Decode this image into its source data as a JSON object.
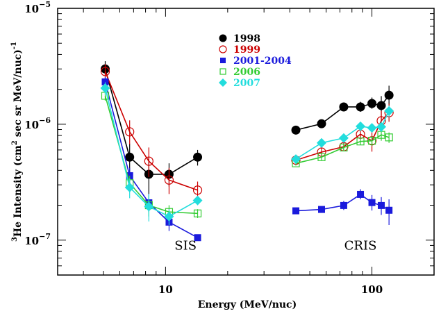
{
  "chart_data": {
    "type": "line",
    "title": "",
    "xlabel": "Energy (MeV/nuc)",
    "ylabel": "3He Intensity (cm2 sec sr MeV/nuc)-1",
    "ylabel_parts": {
      "sup_pre": "3",
      "pre": "He Intensity (cm",
      "sup_mid": "2",
      "mid": " sec sr MeV/nuc)",
      "sup_post": "-1"
    },
    "xscale": "log",
    "yscale": "log",
    "xlim": [
      3,
      200
    ],
    "ylim": [
      5e-08,
      1e-05
    ],
    "x_ticks": [
      {
        "value": 10,
        "label": "10"
      },
      {
        "value": 100,
        "label": "100"
      }
    ],
    "y_ticks": [
      {
        "value": 1e-05,
        "base": "10",
        "exp": "-5"
      },
      {
        "value": 1e-06,
        "base": "10",
        "exp": "-6"
      },
      {
        "value": 1e-07,
        "base": "10",
        "exp": "-7"
      }
    ],
    "grid": false,
    "legend_position": "top-center",
    "annotations": [
      {
        "text": "SIS",
        "x": 12.5,
        "y": 9e-08
      },
      {
        "text": "CRIS",
        "x": 88,
        "y": 9e-08
      }
    ],
    "series": [
      {
        "name": "1998",
        "color": "#000000",
        "marker": "filled-circle",
        "groups": [
          {
            "x": [
              5.1,
              6.7,
              8.3,
              10.4,
              14.3
            ],
            "y": [
              3e-06,
              5.2e-07,
              3.7e-07,
              3.7e-07,
              5.2e-07
            ],
            "err_lo": [
              2.6e-06,
              3.8e-07,
              2.5e-07,
              2.9e-07,
              4.4e-07
            ],
            "err_hi": [
              3.5e-06,
              6.8e-07,
              5.2e-07,
              4.6e-07,
              6e-07
            ]
          },
          {
            "x": [
              42.8,
              57,
              73,
              88,
              100,
              111,
              121
            ],
            "y": [
              8.9e-07,
              1.01e-06,
              1.41e-06,
              1.41e-06,
              1.51e-06,
              1.45e-06,
              1.78e-06
            ],
            "err_lo": [
              8.5e-07,
              9.7e-07,
              1.33e-06,
              1.28e-06,
              1.36e-06,
              1.1e-06,
              1.45e-06
            ],
            "err_hi": [
              9.3e-07,
              1.05e-06,
              1.5e-06,
              1.56e-06,
              1.7e-06,
              1.75e-06,
              2.15e-06
            ]
          }
        ]
      },
      {
        "name": "1999",
        "color": "#cc0000",
        "marker": "open-circle",
        "groups": [
          {
            "x": [
              5.1,
              6.7,
              8.3,
              10.4,
              14.3
            ],
            "y": [
              2.85e-06,
              8.6e-07,
              4.8e-07,
              3.3e-07,
              2.7e-07
            ],
            "err_lo": [
              2.4e-06,
              6.7e-07,
              3.5e-07,
              2.5e-07,
              2.3e-07
            ],
            "err_hi": [
              3.3e-06,
              1.08e-06,
              6.3e-07,
              4.2e-07,
              3.2e-07
            ]
          },
          {
            "x": [
              42.8,
              57,
              73,
              88,
              100,
              111,
              121
            ],
            "y": [
              4.9e-07,
              5.75e-07,
              6.4e-07,
              8.2e-07,
              7.2e-07,
              1.07e-06,
              1.26e-06
            ],
            "err_lo": [
              4.6e-07,
              5.3e-07,
              6e-07,
              7.4e-07,
              5.8e-07,
              8.6e-07,
              1.05e-06
            ],
            "err_hi": [
              5.2e-07,
              6.2e-07,
              6.9e-07,
              9.1e-07,
              8.6e-07,
              1.3e-06,
              1.5e-06
            ]
          }
        ]
      },
      {
        "name": "2001-2004",
        "color": "#1a1adc",
        "marker": "filled-square",
        "groups": [
          {
            "x": [
              5.1,
              6.7,
              8.3,
              10.4,
              14.3
            ],
            "y": [
              2.32e-06,
              3.6e-07,
              2.1e-07,
              1.43e-07,
              1.05e-07
            ],
            "err_lo": [
              2.1e-06,
              3e-07,
              1.75e-07,
              1.2e-07,
              1e-07
            ],
            "err_hi": [
              2.55e-06,
              4.2e-07,
              2.5e-07,
              1.7e-07,
              1.1e-07
            ]
          },
          {
            "x": [
              42.8,
              57,
              73,
              88,
              100,
              111,
              121
            ],
            "y": [
              1.79e-07,
              1.84e-07,
              1.99e-07,
              2.48e-07,
              2.11e-07,
              1.99e-07,
              1.81e-07
            ],
            "err_lo": [
              1.72e-07,
              1.76e-07,
              1.82e-07,
              2.25e-07,
              1.8e-07,
              1.65e-07,
              1.35e-07
            ],
            "err_hi": [
              1.86e-07,
              1.92e-07,
              2.18e-07,
              2.75e-07,
              2.45e-07,
              2.35e-07,
              2.25e-07
            ]
          }
        ]
      },
      {
        "name": "2006",
        "color": "#33cc33",
        "marker": "open-square",
        "groups": [
          {
            "x": [
              5.1,
              6.7,
              8.3,
              10.4,
              14.3
            ],
            "y": [
              1.76e-06,
              3.1e-07,
              2e-07,
              1.75e-07,
              1.7e-07
            ],
            "err_lo": [
              1.6e-06,
              2.6e-07,
              1.6e-07,
              1.5e-07,
              1.55e-07
            ],
            "err_hi": [
              1.95e-06,
              3.6e-07,
              2.4e-07,
              2e-07,
              1.85e-07
            ]
          },
          {
            "x": [
              42.8,
              57,
              73,
              88,
              100,
              111,
              121
            ],
            "y": [
              4.6e-07,
              5.2e-07,
              6.3e-07,
              7.1e-07,
              7.2e-07,
              8.1e-07,
              7.7e-07
            ],
            "err_lo": [
              4.4e-07,
              4.9e-07,
              5.9e-07,
              6.6e-07,
              6.5e-07,
              7.2e-07,
              6.9e-07
            ],
            "err_hi": [
              4.8e-07,
              5.5e-07,
              6.7e-07,
              7.6e-07,
              7.9e-07,
              9e-07,
              8.5e-07
            ]
          }
        ]
      },
      {
        "name": "2007",
        "color": "#22dddd",
        "marker": "filled-diamond",
        "groups": [
          {
            "x": [
              5.1,
              6.7,
              8.3,
              10.4,
              14.3
            ],
            "y": [
              2.05e-06,
              2.85e-07,
              1.95e-07,
              1.6e-07,
              2.2e-07
            ],
            "err_lo": [
              1.8e-06,
              2.3e-07,
              1.45e-07,
              1.35e-07,
              2e-07
            ],
            "err_hi": [
              2.3e-06,
              3.4e-07,
              2.5e-07,
              1.85e-07,
              2.4e-07
            ]
          },
          {
            "x": [
              42.8,
              57,
              73,
              88,
              100,
              111,
              121
            ],
            "y": [
              5e-07,
              6.9e-07,
              7.6e-07,
              9.6e-07,
              9.3e-07,
              9.5e-07,
              1.3e-06
            ],
            "err_lo": [
              4.8e-07,
              6.6e-07,
              7.2e-07,
              9e-07,
              8.6e-07,
              8.6e-07,
              1.15e-06
            ],
            "err_hi": [
              5.2e-07,
              7.2e-07,
              8e-07,
              1.02e-06,
              1e-06,
              1.05e-06,
              1.45e-06
            ]
          }
        ]
      }
    ]
  }
}
